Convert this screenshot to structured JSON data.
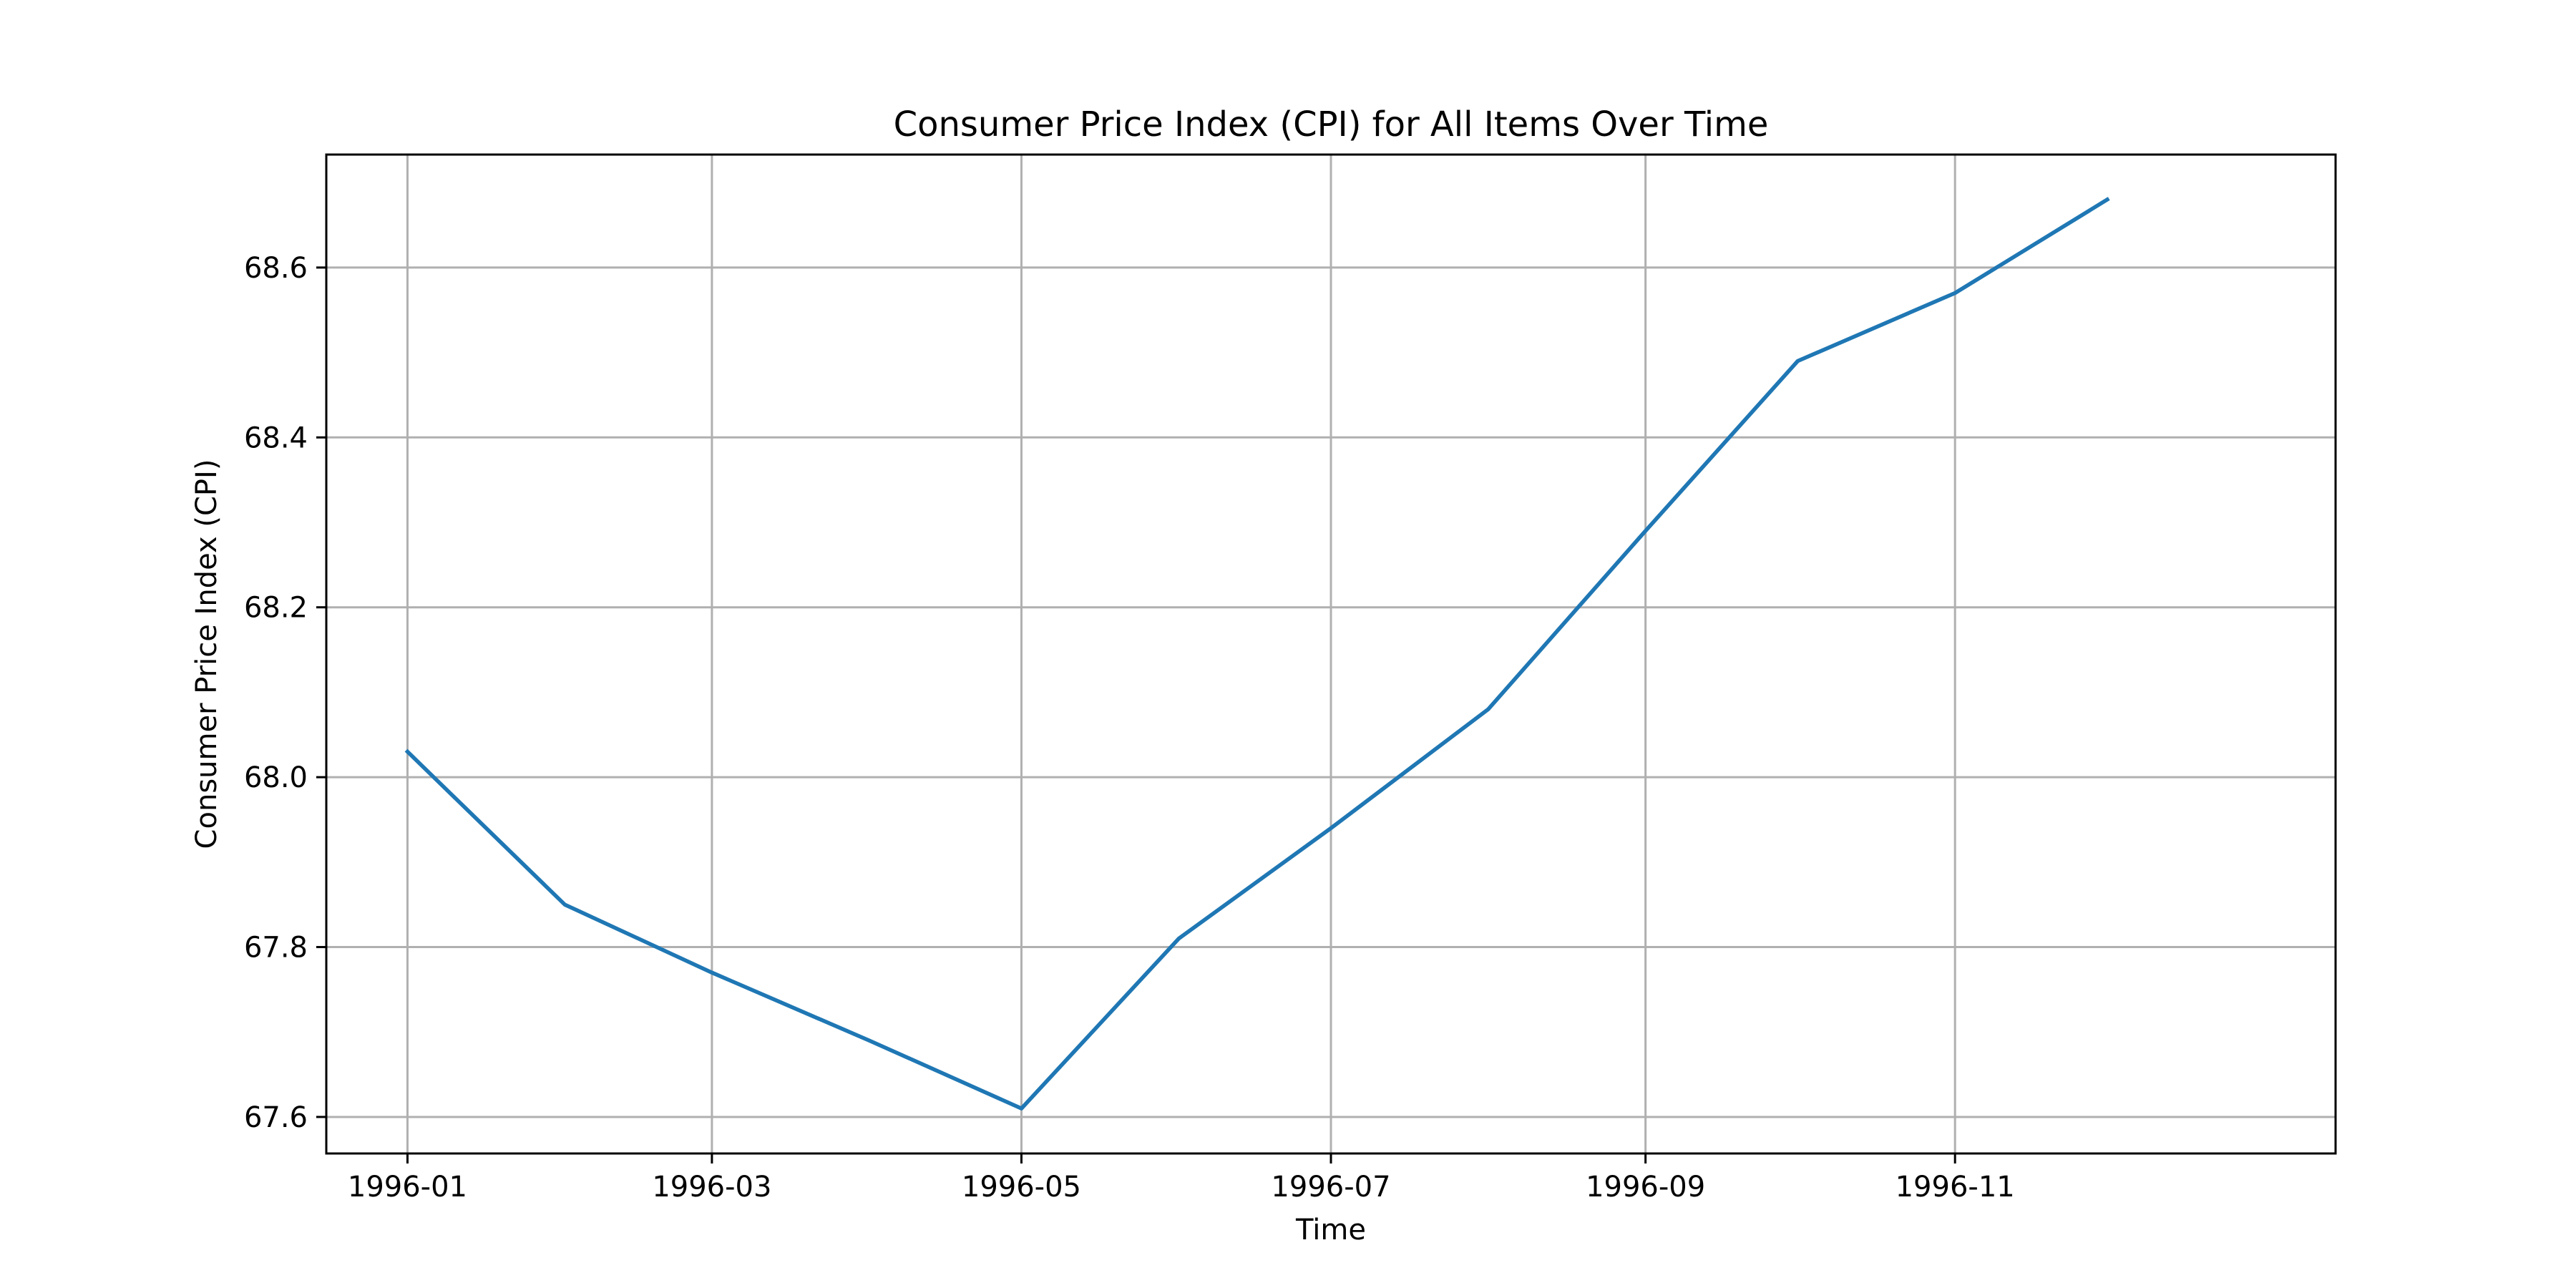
{
  "chart_data": {
    "type": "line",
    "title": "Consumer Price Index (CPI) for All Items Over Time",
    "xlabel": "Time",
    "ylabel": "Consumer Price Index (CPI)",
    "x": [
      "1996-01",
      "1996-02",
      "1996-03",
      "1996-04",
      "1996-05",
      "1996-06",
      "1996-07",
      "1996-08",
      "1996-09",
      "1996-10",
      "1996-11",
      "1996-12"
    ],
    "series": [
      {
        "values": [
          68.03,
          67.85,
          67.77,
          67.69,
          67.61,
          67.81,
          67.94,
          68.08,
          68.29,
          68.49,
          68.57,
          68.68
        ]
      }
    ],
    "xticks": [
      "1996-01",
      "1996-03",
      "1996-05",
      "1996-07",
      "1996-09",
      "1996-11"
    ],
    "yticks": [
      67.6,
      67.8,
      68.0,
      68.2,
      68.4,
      68.6
    ],
    "xlim": [
      "1995-12-16",
      "1997-01-15"
    ],
    "ylim": [
      67.557,
      68.733
    ],
    "grid": true,
    "colors": {
      "line": "#1f77b4",
      "grid": "#b0b0b0",
      "axes": "#000000"
    }
  }
}
